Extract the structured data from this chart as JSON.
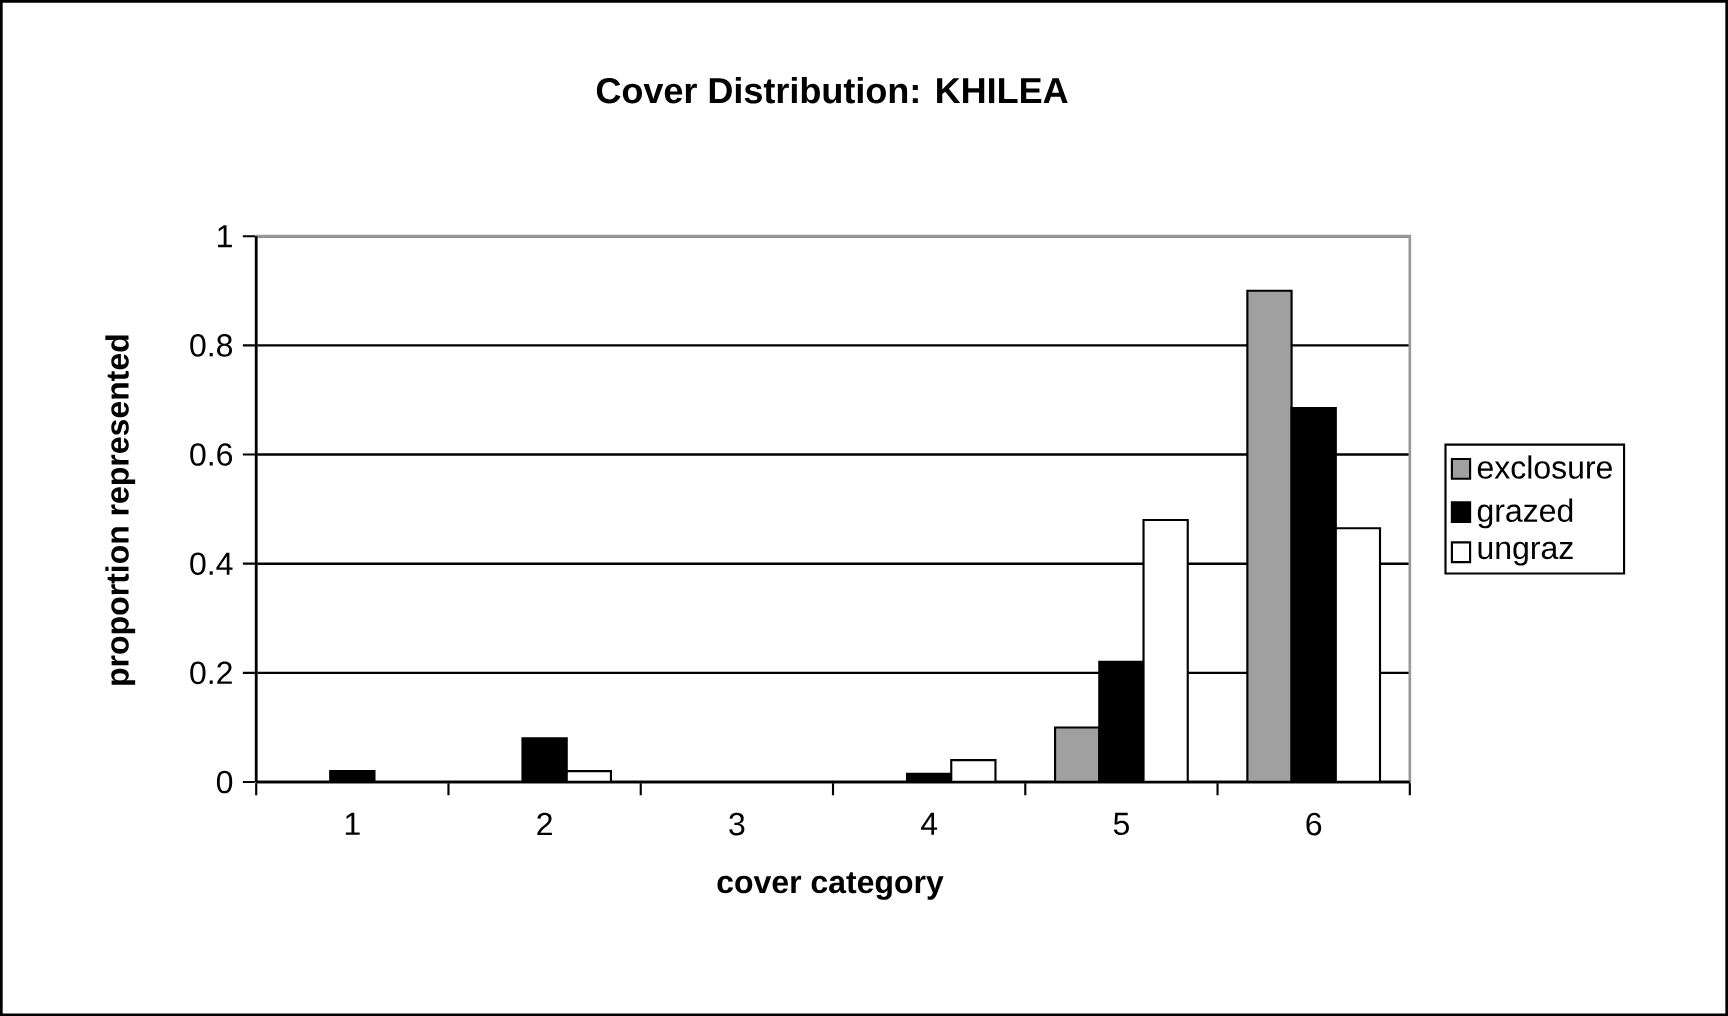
{
  "chart_data": {
    "type": "bar",
    "title": "Cover Distribution: KHILEA",
    "xlabel": "cover category",
    "ylabel": "proportion represented",
    "categories": [
      "1",
      "2",
      "3",
      "4",
      "5",
      "6"
    ],
    "series": [
      {
        "name": "exclosure",
        "color": "#a0a0a0",
        "values": [
          null,
          null,
          null,
          null,
          0.1,
          0.9
        ]
      },
      {
        "name": "grazed",
        "color": "#000000",
        "values": [
          0.02,
          0.08,
          null,
          0.015,
          0.22,
          0.685
        ]
      },
      {
        "name": "ungraz",
        "color": "#ffffff",
        "values": [
          null,
          0.02,
          null,
          0.04,
          0.48,
          0.465
        ]
      }
    ],
    "ylim": [
      0,
      1
    ],
    "yticks": [
      0,
      0.2,
      0.4,
      0.6,
      0.8,
      1
    ],
    "grid": "y",
    "legend": "right"
  }
}
